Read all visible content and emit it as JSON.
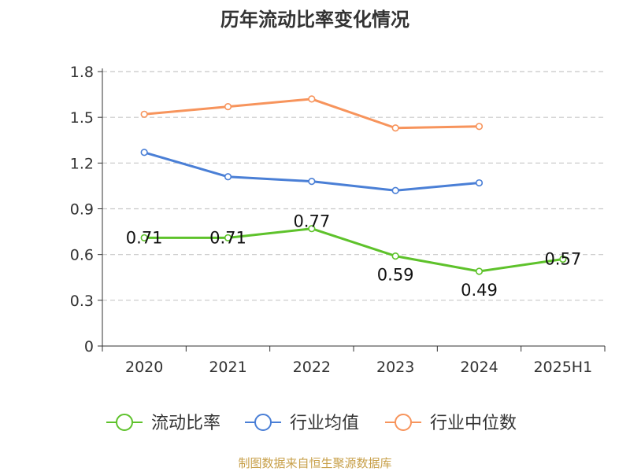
{
  "chart_data": {
    "type": "line",
    "title": "历年流动比率变化情况",
    "categories": [
      "2020",
      "2021",
      "2022",
      "2023",
      "2024",
      "2025H1"
    ],
    "ylim": [
      0,
      1.8
    ],
    "yticks": [
      "0",
      "0.3",
      "0.6",
      "0.9",
      "1.2",
      "1.5",
      "1.8"
    ],
    "grid": true,
    "legend_position": "bottom",
    "series": [
      {
        "name": "流动比率",
        "color": "#5ec22b",
        "values": [
          0.71,
          0.71,
          0.77,
          0.59,
          0.49,
          0.57
        ],
        "labels": [
          "0.71",
          "0.71",
          "0.77",
          "0.59",
          "0.49",
          "0.57"
        ]
      },
      {
        "name": "行业均值",
        "color": "#4a7fd6",
        "values": [
          1.27,
          1.11,
          1.08,
          1.02,
          1.07,
          null
        ]
      },
      {
        "name": "行业中位数",
        "color": "#f7945c",
        "values": [
          1.52,
          1.57,
          1.62,
          1.43,
          1.44,
          null
        ]
      }
    ]
  },
  "source_note": "制图数据来自恒生聚源数据库",
  "colors": {
    "axis": "#333333",
    "grid": "#c8c8c8",
    "source": "#c8a04a",
    "title": "#333333"
  }
}
